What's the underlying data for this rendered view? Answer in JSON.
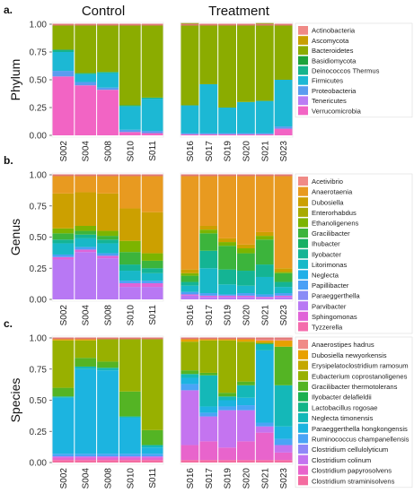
{
  "figure": {
    "panel_letters": [
      "a.",
      "b.",
      "c."
    ],
    "group_titles": [
      "Control",
      "Treatment"
    ],
    "row_titles": [
      "Phylum",
      "Genus",
      "Species"
    ]
  },
  "chart_data": [
    {
      "type": "bar",
      "stacked": true,
      "panel": "a.",
      "ylabel": "Phylum",
      "ylim": [
        0,
        1
      ],
      "yticks": [
        "0.00",
        "0.25",
        "0.50",
        "0.75",
        "1.00"
      ],
      "groups": [
        {
          "title": "Control",
          "categories": [
            "S002",
            "S004",
            "S008",
            "S010",
            "S011"
          ]
        },
        {
          "title": "Treatment",
          "categories": [
            "S016",
            "S017",
            "S019",
            "S020",
            "S021",
            "S023"
          ]
        }
      ],
      "legend": {
        "labels": [
          "Actinobacteria",
          "Ascomycota",
          "Bacteroidetes",
          "Basidiomycota",
          "Deinococcos Thermus",
          "Firmicutes",
          "Proteobacteria",
          "Tenericutes",
          "Verrucomicrobia"
        ],
        "colors": [
          "#f08a86",
          "#c8a000",
          "#8bac00",
          "#1ba33b",
          "#15b48c",
          "#1cb8d4",
          "#5a9cf0",
          "#bb7cf4",
          "#f264c4"
        ]
      },
      "series": [
        {
          "name": "Tenericutes",
          "color": "#f264c4",
          "values": [
            0.53,
            0.45,
            0.41,
            0.03,
            0.02,
            0.01,
            0.01,
            0.01,
            0.01,
            0.01,
            0.06
          ]
        },
        {
          "name": "Proteobacteria",
          "color": "#5a9cf0",
          "values": [
            0.05,
            0.03,
            0.02,
            0.02,
            0.02,
            0.01,
            0.01,
            0.01,
            0.01,
            0.01,
            0.02
          ]
        },
        {
          "name": "Firmicutes",
          "color": "#1cb8d4",
          "values": [
            0.17,
            0.07,
            0.13,
            0.21,
            0.29,
            0.25,
            0.44,
            0.23,
            0.28,
            0.29,
            0.42
          ]
        },
        {
          "name": "Deinococcos Thermus",
          "color": "#15b48c",
          "values": [
            0.02,
            0.01,
            0.01,
            0.01,
            0.01,
            0.0,
            0.0,
            0.0,
            0.0,
            0.0,
            0.0
          ]
        },
        {
          "name": "Bacteroidetes",
          "color": "#8bac00",
          "values": [
            0.23,
            0.44,
            0.43,
            0.73,
            0.66,
            0.74,
            0.54,
            0.75,
            0.7,
            0.7,
            0.5
          ]
        }
      ]
    },
    {
      "type": "bar",
      "stacked": true,
      "panel": "b.",
      "ylabel": "Genus",
      "ylim": [
        0,
        1
      ],
      "yticks": [
        "0.00",
        "0.25",
        "0.50",
        "0.75",
        "1.00"
      ],
      "groups": [
        {
          "title": "Control",
          "categories": [
            "S002",
            "S004",
            "S008",
            "S010",
            "S011"
          ]
        },
        {
          "title": "Treatment",
          "categories": [
            "S016",
            "S017",
            "S019",
            "S020",
            "S021",
            "S023"
          ]
        }
      ],
      "legend": {
        "labels": [
          "Acetivibrio",
          "Anaerotaenia",
          "Dubosiella",
          "Enterorhabdus",
          "Ethanoligenens",
          "Gracilibacter",
          "Ihubacter",
          "Ilyobacter",
          "Litorimonas",
          "Neglecta",
          "Papillibacter",
          "Paraeggerthella",
          "Parvibacter",
          "Sphingomonas",
          "Tyzzerella"
        ],
        "colors": [
          "#f08a86",
          "#e89a20",
          "#cca000",
          "#a8aa00",
          "#7cb400",
          "#3cb43c",
          "#18b064",
          "#14b494",
          "#18b8c8",
          "#20b0e8",
          "#4aa0f6",
          "#8a8cf6",
          "#b878f4",
          "#e064d8",
          "#f46cac"
        ]
      },
      "series": [
        {
          "name": "Parvibacter",
          "color": "#b878f4",
          "values": [
            0.32,
            0.38,
            0.33,
            0.1,
            0.1,
            0.03,
            0.02,
            0.02,
            0.02,
            0.01,
            0.02
          ]
        },
        {
          "name": "Sphingomonas",
          "color": "#e064d8",
          "values": [
            0.02,
            0.02,
            0.02,
            0.03,
            0.03,
            0.01,
            0.01,
            0.01,
            0.01,
            0.01,
            0.01
          ]
        },
        {
          "name": "Papillibacter",
          "color": "#4aa0f6",
          "values": [
            0.02,
            0.02,
            0.02,
            0.02,
            0.02,
            0.02,
            0.02,
            0.01,
            0.02,
            0.02,
            0.02
          ]
        },
        {
          "name": "Litorimonas",
          "color": "#18b8c8",
          "values": [
            0.09,
            0.07,
            0.08,
            0.08,
            0.06,
            0.05,
            0.2,
            0.08,
            0.06,
            0.14,
            0.05
          ]
        },
        {
          "name": "Ilyobacter",
          "color": "#14b494",
          "values": [
            0.03,
            0.03,
            0.03,
            0.05,
            0.04,
            0.03,
            0.14,
            0.12,
            0.12,
            0.1,
            0.04
          ]
        },
        {
          "name": "Gracilibacter",
          "color": "#3cb43c",
          "values": [
            0.05,
            0.03,
            0.03,
            0.1,
            0.06,
            0.05,
            0.14,
            0.19,
            0.14,
            0.2,
            0.07
          ]
        },
        {
          "name": "Ethanoligenens",
          "color": "#7cb400",
          "values": [
            0.04,
            0.04,
            0.04,
            0.09,
            0.06,
            0.02,
            0.03,
            0.03,
            0.04,
            0.03,
            0.01
          ]
        },
        {
          "name": "Dubosiella",
          "color": "#cca000",
          "values": [
            0.28,
            0.27,
            0.3,
            0.26,
            0.33,
            0.03,
            0.03,
            0.03,
            0.03,
            0.03,
            0.03
          ]
        },
        {
          "name": "Anaerotaenia",
          "color": "#e89a20",
          "values": [
            0.15,
            0.14,
            0.15,
            0.27,
            0.3,
            0.76,
            0.41,
            0.51,
            0.56,
            0.46,
            0.75
          ]
        }
      ]
    },
    {
      "type": "bar",
      "stacked": true,
      "panel": "c.",
      "ylabel": "Species",
      "ylim": [
        0,
        1
      ],
      "yticks": [
        "0.00",
        "0.25",
        "0.50",
        "0.75",
        "1.00"
      ],
      "groups": [
        {
          "title": "Control",
          "categories": [
            "S002",
            "S004",
            "S008",
            "S010",
            "S011"
          ]
        },
        {
          "title": "Treatment",
          "categories": [
            "S016",
            "S017",
            "S019",
            "S020",
            "S021",
            "S023"
          ]
        }
      ],
      "legend": {
        "labels": [
          "Anaerostipes hadrus",
          "Dubosiella newyorkensis",
          "Erysipelatoclostridium ramosum",
          "Eubacterium coprostanoligenes",
          "Gracilibacter thermotolerans",
          "Ilyobacter delafieldii",
          "Lactobacillus rogosae",
          "Neglecta timonensis",
          "Paraeggerthella hongkongensis",
          "Ruminococcus champanellensis",
          "Clostridium cellulolyticum",
          "Clostridium colinum",
          "Clostridium papyrosolvens",
          "Clostridium straminisolvens"
        ],
        "colors": [
          "#f08a86",
          "#e8a000",
          "#c4a800",
          "#98b000",
          "#54b424",
          "#1cb050",
          "#14b488",
          "#14b8b8",
          "#1cb4e0",
          "#4aa4f6",
          "#9088f8",
          "#c474f0",
          "#e864cc",
          "#f46ca0"
        ]
      },
      "series": [
        {
          "name": "Clostridium straminisolvens",
          "color": "#f46ca0",
          "values": [
            0.02,
            0.02,
            0.02,
            0.02,
            0.02,
            0.02,
            0.02,
            0.02,
            0.02,
            0.02,
            0.02
          ]
        },
        {
          "name": "Clostridium papyrosolvens",
          "color": "#e864cc",
          "values": [
            0.02,
            0.02,
            0.02,
            0.02,
            0.02,
            0.12,
            0.15,
            0.1,
            0.15,
            0.22,
            0.06
          ]
        },
        {
          "name": "Clostridium colinum",
          "color": "#c474f0",
          "values": [
            0.01,
            0.01,
            0.01,
            0.01,
            0.01,
            0.44,
            0.2,
            0.3,
            0.25,
            0.05,
            0.06
          ]
        },
        {
          "name": "Ruminococcus champanellensis",
          "color": "#4aa4f6",
          "values": [
            0.02,
            0.02,
            0.02,
            0.02,
            0.02,
            0.05,
            0.03,
            0.03,
            0.04,
            0.03,
            0.05
          ]
        },
        {
          "name": "Paraeggerthella hongkongensis",
          "color": "#1cb4e0",
          "values": [
            0.45,
            0.68,
            0.67,
            0.29,
            0.05,
            0.05,
            0.05,
            0.05,
            0.06,
            0.58,
            0.1
          ]
        },
        {
          "name": "Neglecta timonensis",
          "color": "#14b8b8",
          "values": [
            0.01,
            0.02,
            0.02,
            0.01,
            0.02,
            0.03,
            0.25,
            0.03,
            0.1,
            0.05,
            0.33
          ]
        },
        {
          "name": "Gracilibacter thermotolerans",
          "color": "#54b424",
          "values": [
            0.07,
            0.07,
            0.05,
            0.2,
            0.12,
            0.03,
            0.02,
            0.03,
            0.03,
            0.01,
            0.31
          ]
        },
        {
          "name": "Eubacterium coprostanoligenes",
          "color": "#98b000",
          "values": [
            0.38,
            0.14,
            0.18,
            0.42,
            0.74,
            0.23,
            0.26,
            0.42,
            0.32,
            0.0,
            0.0
          ]
        },
        {
          "name": "Dubosiella newyorkensis",
          "color": "#e8a000",
          "values": [
            0.02,
            0.02,
            0.01,
            0.01,
            0.0,
            0.03,
            0.02,
            0.02,
            0.03,
            0.02,
            0.05
          ]
        },
        {
          "name": "Anaerostipes hadrus",
          "color": "#f08a86",
          "values": [
            0.0,
            0.0,
            0.0,
            0.0,
            0.0,
            0.0,
            0.0,
            0.0,
            0.0,
            0.02,
            0.02
          ]
        }
      ]
    }
  ]
}
